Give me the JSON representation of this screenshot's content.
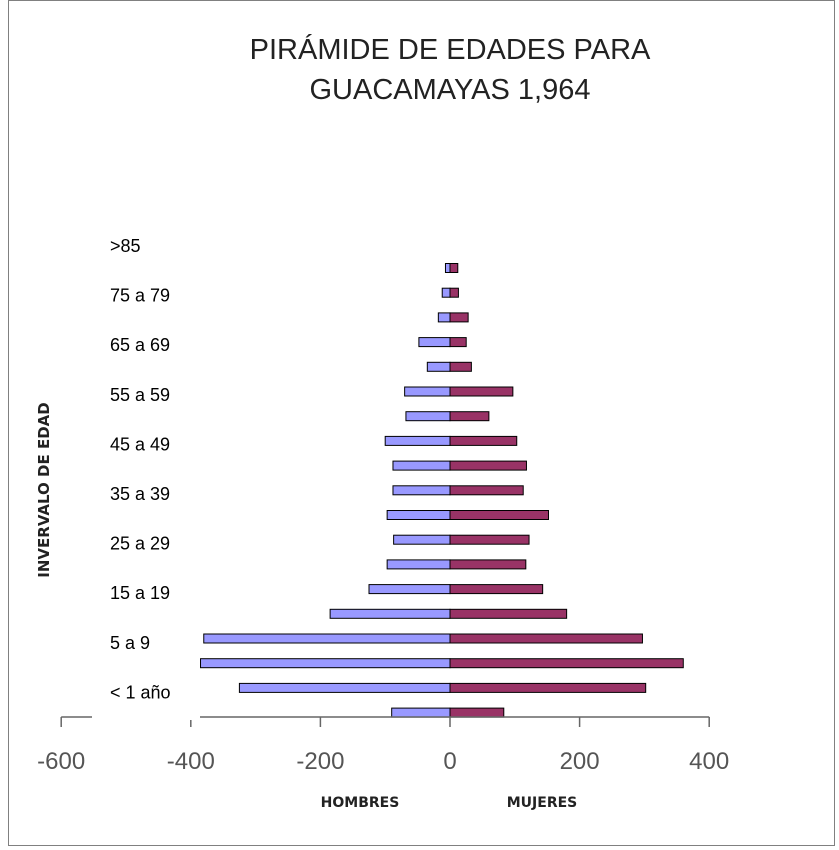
{
  "chart_data": {
    "type": "bar",
    "orientation": "horizontal",
    "title_lines": [
      "PIRÁMIDE DE EDADES PARA",
      "GUACAMAYAS 1,964"
    ],
    "ylabel": "INVERVALO DE EDAD",
    "xlabel_left": "HOMBRES",
    "xlabel_right": "MUJERES",
    "xlim": [
      -600,
      400
    ],
    "xticks": [
      -600,
      -400,
      -200,
      0,
      200,
      400
    ],
    "category_labels": [
      ">85",
      "75 a 79",
      "65 a 69",
      "55 a 59",
      "45 a 49",
      "35 a 39",
      "25 a 29",
      "15 a 19",
      "5 a 9",
      "< 1 año"
    ],
    "series": [
      {
        "name": "HOMBRES",
        "color": "#9999FF",
        "values": [
          -7,
          -12,
          -18,
          -48,
          -35,
          -70,
          -68,
          -100,
          -88,
          -88,
          -97,
          -87,
          -97,
          -125,
          -185,
          -380,
          -385,
          -325,
          -90
        ]
      },
      {
        "name": "MUJERES",
        "color": "#993366",
        "values": [
          12,
          13,
          28,
          25,
          33,
          97,
          60,
          103,
          118,
          113,
          152,
          122,
          117,
          143,
          180,
          297,
          360,
          302,
          83
        ]
      }
    ]
  }
}
